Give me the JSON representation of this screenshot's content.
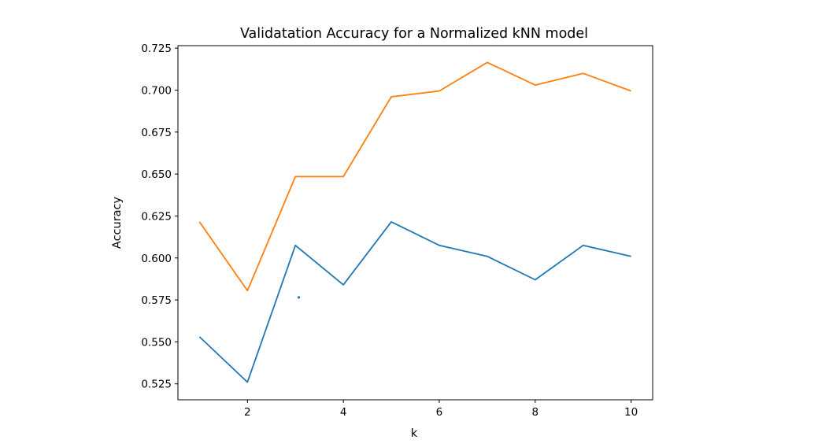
{
  "chart_data": {
    "type": "line",
    "title": "Validatation Accuracy for a Normalized kNN model",
    "xlabel": "k",
    "ylabel": "Accuracy",
    "xlim": [
      0.55,
      10.45
    ],
    "ylim": [
      0.5155,
      0.7265
    ],
    "xticks": [
      2,
      4,
      6,
      8,
      10
    ],
    "yticks": [
      0.525,
      0.55,
      0.575,
      0.6,
      0.625,
      0.65,
      0.675,
      0.7,
      0.725
    ],
    "xtick_labels": [
      "2",
      "4",
      "6",
      "8",
      "10"
    ],
    "ytick_labels": [
      "0.525",
      "0.550",
      "0.575",
      "0.600",
      "0.625",
      "0.650",
      "0.675",
      "0.700",
      "0.725"
    ],
    "grid": false,
    "legend": "none",
    "x": [
      1,
      2,
      3,
      4,
      5,
      6,
      7,
      8,
      9,
      10
    ],
    "series": [
      {
        "color": "#1f77b4",
        "values": [
          0.553,
          0.526,
          0.6075,
          0.584,
          0.6215,
          0.6075,
          0.601,
          0.587,
          0.6075,
          0.601
        ]
      },
      {
        "color": "#ff7f0e",
        "values": [
          0.6215,
          0.5805,
          0.6485,
          0.6485,
          0.696,
          0.6995,
          0.7165,
          0.703,
          0.71,
          0.6995
        ]
      }
    ],
    "extra_points": [
      {
        "x": 3.07,
        "y": 0.5765,
        "color": "#1f77b4"
      }
    ]
  }
}
